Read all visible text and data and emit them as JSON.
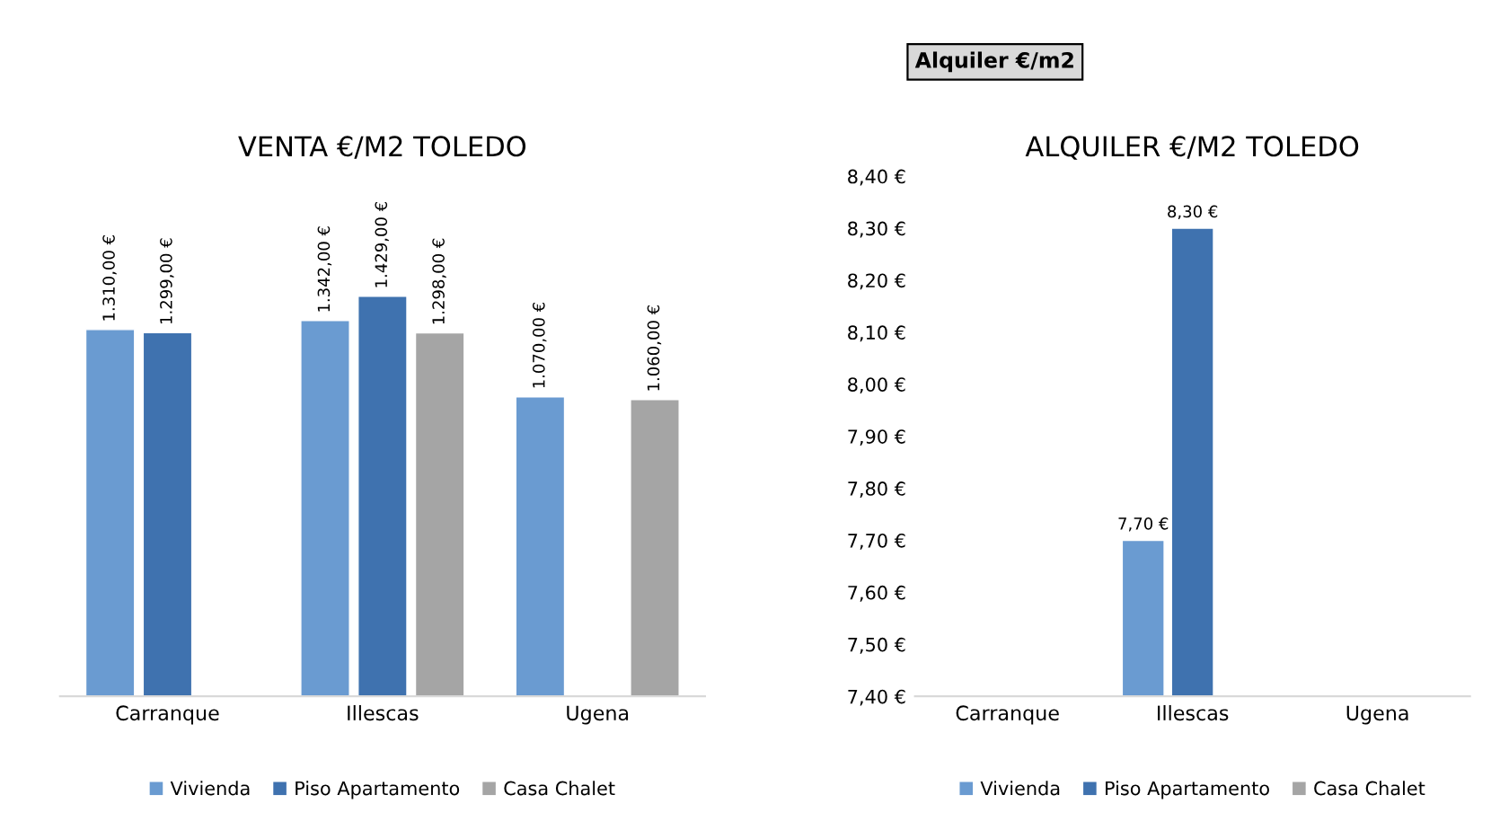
{
  "chart_data": [
    {
      "type": "bar",
      "title": "VENTA €/M2 TOLEDO",
      "categories": [
        "Carranque",
        "Illescas",
        "Ugena"
      ],
      "series": [
        {
          "name": "Vivienda",
          "color": "#6a9bd1",
          "values": [
            1310,
            1342,
            1070
          ],
          "value_labels": [
            "1.310,00 €",
            "1.342,00 €",
            "1.070,00 €"
          ]
        },
        {
          "name": "Piso Apartamento",
          "color": "#3f72af",
          "values": [
            1299,
            1429,
            null
          ],
          "value_labels": [
            "1.299,00 €",
            "1.429,00 €",
            null
          ]
        },
        {
          "name": "Casa Chalet",
          "color": "#a5a5a5",
          "values": [
            null,
            1298,
            1060
          ],
          "value_labels": [
            null,
            "1.298,00 €",
            "1.060,00 €"
          ]
        }
      ],
      "tick_labels": "x",
      "legend": "bottom",
      "grid": false
    },
    {
      "type": "bar",
      "title": "ALQUILER €/M2 TOLEDO",
      "categories": [
        "Carranque",
        "Illescas",
        "Ugena"
      ],
      "series": [
        {
          "name": "Vivienda",
          "color": "#6a9bd1",
          "values": [
            null,
            7.7,
            null
          ],
          "value_labels": [
            null,
            "7,70 €",
            null
          ]
        },
        {
          "name": "Piso Apartamento",
          "color": "#3f72af",
          "values": [
            null,
            8.3,
            null
          ],
          "value_labels": [
            null,
            "8,30 €",
            null
          ]
        },
        {
          "name": "Casa Chalet",
          "color": "#a5a5a5",
          "values": [
            null,
            null,
            null
          ],
          "value_labels": [
            null,
            null,
            null
          ]
        }
      ],
      "ylim": [
        7.4,
        8.4
      ],
      "yticks": [
        {
          "value": 7.4,
          "label": "7,40 €"
        },
        {
          "value": 7.5,
          "label": "7,50 €"
        },
        {
          "value": 7.6,
          "label": "7,60 €"
        },
        {
          "value": 7.7,
          "label": "7,70 €"
        },
        {
          "value": 7.8,
          "label": "7,80 €"
        },
        {
          "value": 7.9,
          "label": "7,90 €"
        },
        {
          "value": 8.0,
          "label": "8,00 €"
        },
        {
          "value": 8.1,
          "label": "8,10 €"
        },
        {
          "value": 8.2,
          "label": "8,20 €"
        },
        {
          "value": 8.3,
          "label": "8,30 €"
        },
        {
          "value": 8.4,
          "label": "8,40 €"
        }
      ],
      "annotations": [
        "Alquiler €/m2"
      ],
      "legend": "bottom",
      "grid": false
    }
  ]
}
